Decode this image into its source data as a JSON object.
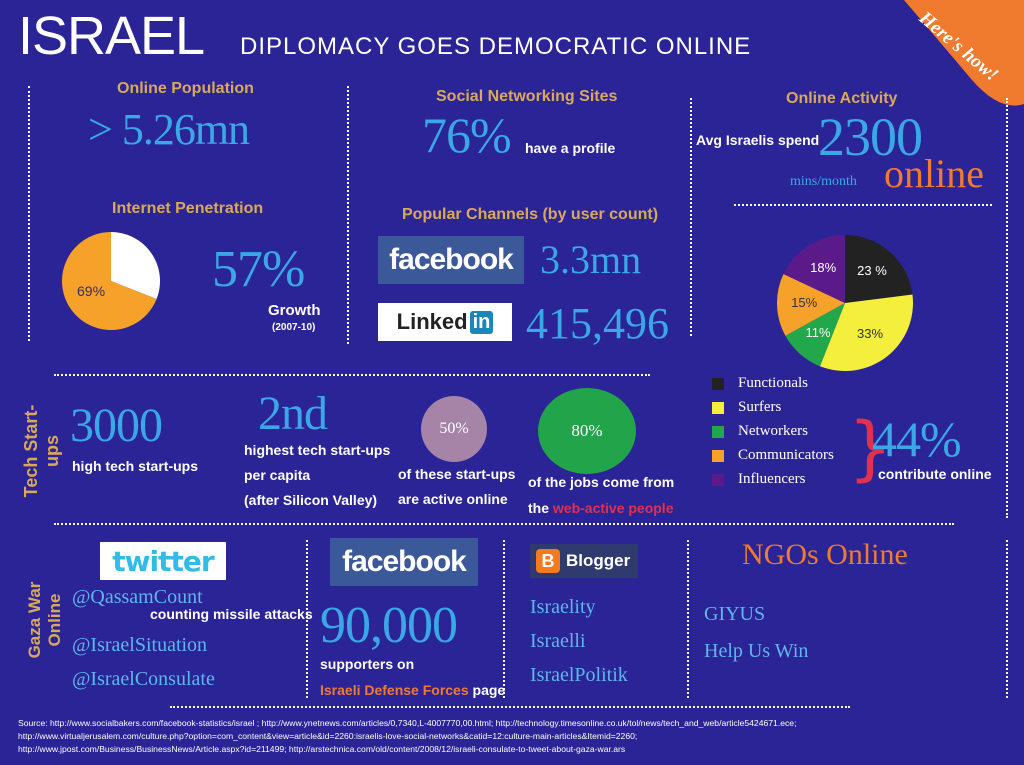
{
  "header": {
    "title": "ISRAEL",
    "subtitle": "DIPLOMACY GOES DEMOCRATIC ONLINE",
    "badge": "Here's how!"
  },
  "online_population": {
    "label": "Online Population",
    "value": "> 5.26mn"
  },
  "internet_penetration": {
    "label": "Internet Penetration",
    "pie_label": "69%",
    "pie_fraction": 0.69,
    "growth_value": "57%",
    "growth_label": "Growth",
    "growth_period": "(2007-10)"
  },
  "social_networking": {
    "label": "Social Networking Sites",
    "value": "76%",
    "value_note": "have a profile",
    "channels_label": "Popular Channels (by user count)",
    "facebook_logo": "facebook",
    "facebook_value": "3.3mn",
    "linkedin_logo_a": "Linked",
    "linkedin_logo_b": "in",
    "linkedin_value": "415,496"
  },
  "online_activity": {
    "label": "Online Activity",
    "prefix": "Avg Israelis spend",
    "value": "2300",
    "unit": "mins/month",
    "suffix": "online"
  },
  "user_types": {
    "slices": [
      {
        "name": "Functionals",
        "label": "23 %",
        "value": 23,
        "color": "#222222"
      },
      {
        "name": "Surfers",
        "label": "33%",
        "value": 33,
        "color": "#f4ee3c"
      },
      {
        "name": "Networkers",
        "label": "11%",
        "value": 11,
        "color": "#22a84a"
      },
      {
        "name": "Communicators",
        "label": "15%",
        "value": 15,
        "color": "#f5a12a"
      },
      {
        "name": "Influencers",
        "label": "18%",
        "value": 18,
        "color": "#5a1a8a"
      }
    ],
    "contribute_value": "44%",
    "contribute_label": "contribute online"
  },
  "tech_startups": {
    "section_label": "Tech Start-ups",
    "count_value": "3000",
    "count_label": "high tech start-ups",
    "rank_value": "2nd",
    "rank_line1": "highest tech start-ups",
    "rank_line2": "per capita",
    "rank_line3": "(after Silicon Valley)",
    "active_value": "50%",
    "active_line1": "of these start-ups",
    "active_line2": "are active online",
    "jobs_value": "80%",
    "jobs_line1": "of the jobs come from",
    "jobs_line2a": "the",
    "jobs_line2b": "web-active people"
  },
  "gaza_war": {
    "section_label": "Gaza War Online",
    "twitter_logo": "twitter",
    "twitter_handle1": "@QassamCount",
    "twitter_note1": "counting missile attacks",
    "twitter_handle2": "@IsraelSituation",
    "twitter_handle3": "@IsraelConsulate",
    "facebook_logo": "facebook",
    "facebook_value": "90,000",
    "facebook_line1": "supporters on",
    "facebook_line2a": "Israeli Defense Forces",
    "facebook_line2b": "page",
    "blogger_logo": "Blogger",
    "blogger_icon": "B",
    "blog1": "Israelity",
    "blog2": "Israelli",
    "blog3": "IsraelPolitik",
    "ngo_title": "NGOs Online",
    "ngo1": "GIYUS",
    "ngo2": "Help Us Win"
  },
  "sources": {
    "line1": "Source: http://www.socialbakers.com/facebook-statistics/israel ; http://www.ynetnews.com/articles/0,7340,L-4007770,00.html; http://technology.timesonline.co.uk/tol/news/tech_and_web/article5424671.ece;",
    "line2": "http://www.virtualjerusalem.com/culture.php?option=com_content&view=article&id=2260:israelis-love-social-networks&catid=12:culture-main-articles&Itemid=2260;",
    "line3": "http://www.jpost.com/Business/BusinessNews/Article.aspx?id=211499; http://arstechnica.com/old/content/2008/12/israeli-consulate-to-tweet-about-gaza-war.ars"
  }
}
